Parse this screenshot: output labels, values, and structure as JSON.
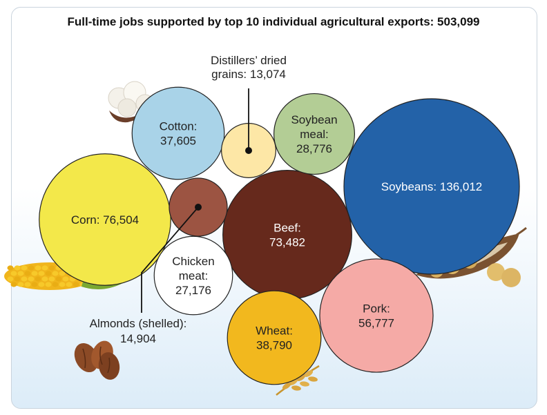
{
  "chart_data": {
    "type": "bubble",
    "title": "Full-time jobs supported by top 10 individual agricultural exports: 503,099",
    "items": [
      {
        "name": "Soybeans",
        "value": 136012,
        "label": "Soybeans: 136,012",
        "color": "#2362a8",
        "text_color": "#ffffff"
      },
      {
        "name": "Corn",
        "value": 76504,
        "label": "Corn: 76,504",
        "color": "#f3e84a",
        "text_color": "#222222"
      },
      {
        "name": "Beef",
        "value": 73482,
        "label": "Beef:|73,482",
        "color": "#66291c",
        "text_color": "#ffffff"
      },
      {
        "name": "Pork",
        "value": 56777,
        "label": "Pork:|56,777",
        "color": "#f5aaa6",
        "text_color": "#222222"
      },
      {
        "name": "Wheat",
        "value": 38790,
        "label": "Wheat:|38,790",
        "color": "#f2b81e",
        "text_color": "#222222"
      },
      {
        "name": "Cotton",
        "value": 37605,
        "label": "Cotton:|37,605",
        "color": "#a9d3e8",
        "text_color": "#222222"
      },
      {
        "name": "Soybean meal",
        "value": 28776,
        "label": "Soybean|meal:|28,776",
        "color": "#b3cd95",
        "text_color": "#222222"
      },
      {
        "name": "Chicken meat",
        "value": 27176,
        "label": "Chicken|meat:|27,176",
        "color": "#ffffff",
        "text_color": "#222222"
      },
      {
        "name": "Almonds (shelled)",
        "value": 14904,
        "label": "",
        "color": "#9c5442",
        "text_color": "#222222"
      },
      {
        "name": "Distillers' dried grains",
        "value": 13074,
        "label": "",
        "color": "#fde7a6",
        "text_color": "#222222"
      }
    ],
    "callouts": [
      {
        "target": "Distillers' dried grains",
        "lines": [
          "Distillers’ dried",
          "grains: 13,074"
        ]
      },
      {
        "target": "Almonds (shelled)",
        "lines": [
          "Almonds (shelled):",
          "14,904"
        ]
      }
    ],
    "icons": [
      "cotton-boll-icon",
      "corn-cob-icon",
      "almond-icon",
      "soybean-pod-icon",
      "wheat-ear-icon"
    ]
  }
}
